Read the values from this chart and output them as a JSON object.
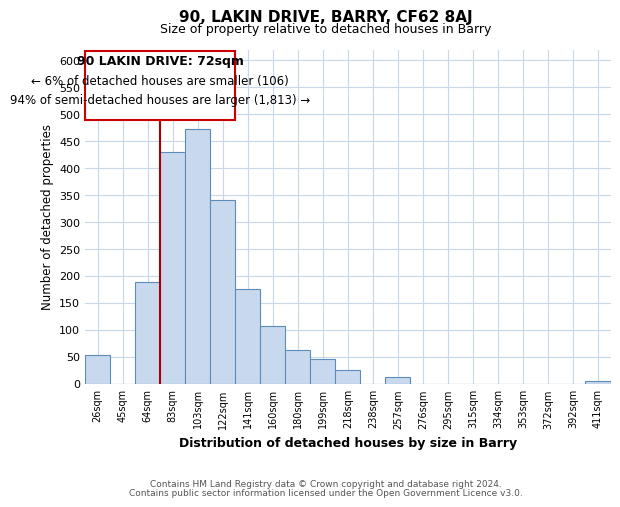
{
  "title": "90, LAKIN DRIVE, BARRY, CF62 8AJ",
  "subtitle": "Size of property relative to detached houses in Barry",
  "xlabel": "Distribution of detached houses by size in Barry",
  "ylabel": "Number of detached properties",
  "bar_labels": [
    "26sqm",
    "45sqm",
    "64sqm",
    "83sqm",
    "103sqm",
    "122sqm",
    "141sqm",
    "160sqm",
    "180sqm",
    "199sqm",
    "218sqm",
    "238sqm",
    "257sqm",
    "276sqm",
    "295sqm",
    "315sqm",
    "334sqm",
    "353sqm",
    "372sqm",
    "392sqm",
    "411sqm"
  ],
  "bar_values": [
    53,
    0,
    188,
    430,
    473,
    340,
    175,
    108,
    62,
    46,
    25,
    0,
    13,
    0,
    0,
    0,
    0,
    0,
    0,
    0,
    5
  ],
  "bar_color": "#c8d9ee",
  "bar_edge_color": "#5b8db8",
  "highlight_line_color": "#aa0000",
  "highlight_bar_index": 3,
  "annotation_title": "90 LAKIN DRIVE: 72sqm",
  "annotation_line1": "← 6% of detached houses are smaller (106)",
  "annotation_line2": "94% of semi-detached houses are larger (1,813) →",
  "annotation_box_color": "#cc0000",
  "ylim": [
    0,
    620
  ],
  "yticks": [
    0,
    50,
    100,
    150,
    200,
    250,
    300,
    350,
    400,
    450,
    500,
    550,
    600
  ],
  "footer1": "Contains HM Land Registry data © Crown copyright and database right 2024.",
  "footer2": "Contains public sector information licensed under the Open Government Licence v3.0.",
  "bg_color": "#ffffff",
  "grid_color": "#c8d8e8"
}
